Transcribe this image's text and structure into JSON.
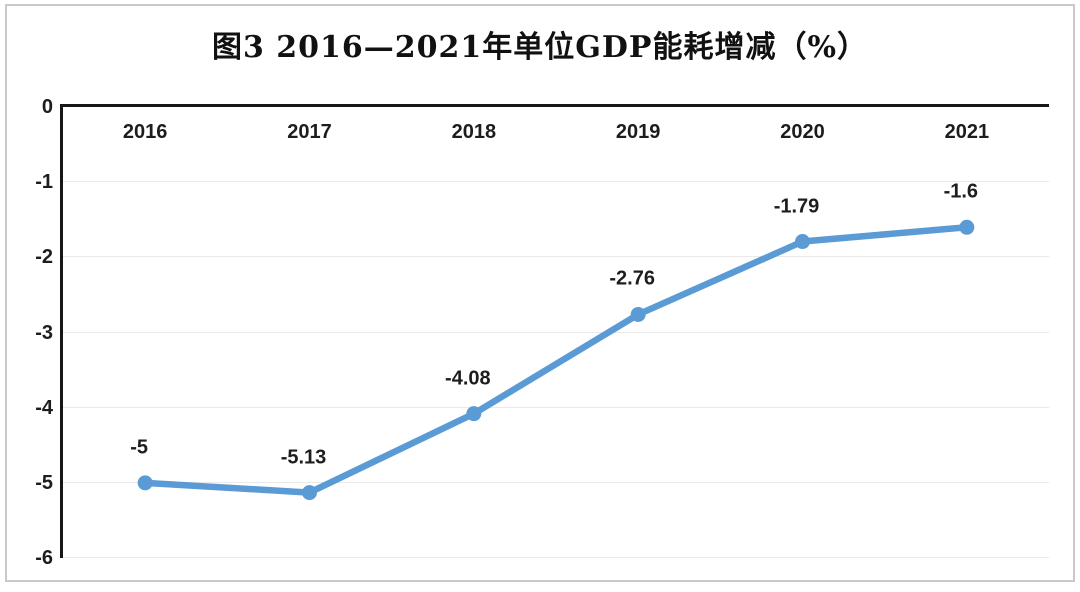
{
  "chart_data": {
    "type": "line",
    "title": "图3 2016—2021年单位GDP能耗增减（%）",
    "categories": [
      "2016",
      "2017",
      "2018",
      "2019",
      "2020",
      "2021"
    ],
    "values": [
      -5,
      -5.13,
      -4.08,
      -2.76,
      -1.79,
      -1.6
    ],
    "data_labels": [
      "-5",
      "-5.13",
      "-4.08",
      "-2.76",
      "-1.79",
      "-1.6"
    ],
    "xlabel": "",
    "ylabel": "",
    "ylim": [
      -6,
      0
    ],
    "yticks": [
      0,
      -1,
      -2,
      -3,
      -4,
      -5,
      -6
    ],
    "ytick_labels": [
      "0",
      "-1",
      "-2",
      "-3",
      "-4",
      "-5",
      "-6"
    ],
    "grid": "horizontal",
    "legend": "none",
    "colors": {
      "line": "#5b9bd5",
      "marker": "#5b9bd5",
      "gridline": "#e9e9e9",
      "axis": "#161616",
      "text": "#1d1d1d",
      "frame_border": "#c9c9c9"
    }
  }
}
